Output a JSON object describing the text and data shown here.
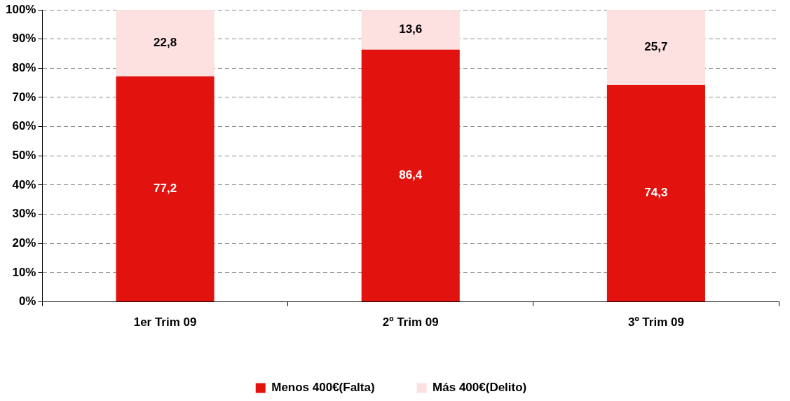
{
  "chart_data": {
    "type": "bar",
    "stacked": true,
    "categories": [
      "1er Trim 09",
      "2º Trim 09",
      "3º Trim 09"
    ],
    "series": [
      {
        "name": "Menos 400€(Falta)",
        "color": "#e2120f",
        "values": [
          77.2,
          86.4,
          74.3
        ],
        "value_labels": [
          "77,2",
          "86,4",
          "74,3"
        ]
      },
      {
        "name": "Más 400€(Delito)",
        "color": "#fde0e0",
        "values": [
          22.8,
          13.6,
          25.7
        ],
        "value_labels": [
          "22,8",
          "13,6",
          "25,7"
        ]
      }
    ],
    "ylim": [
      0,
      100
    ],
    "yticks": [
      {
        "value": 0,
        "label": "0%"
      },
      {
        "value": 10,
        "label": "10%"
      },
      {
        "value": 20,
        "label": "20%"
      },
      {
        "value": 30,
        "label": "30%"
      },
      {
        "value": 40,
        "label": "40%"
      },
      {
        "value": 50,
        "label": "50%"
      },
      {
        "value": 60,
        "label": "60%"
      },
      {
        "value": 70,
        "label": "70%"
      },
      {
        "value": 80,
        "label": "80%"
      },
      {
        "value": 90,
        "label": "90%"
      },
      {
        "value": 100,
        "label": "100%"
      }
    ],
    "grid": "y",
    "legend": "bottom"
  }
}
